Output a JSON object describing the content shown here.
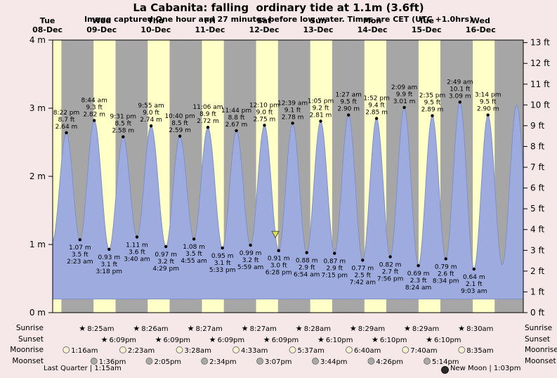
{
  "chart_data": {
    "type": "area",
    "title": "La Cabanita: falling  ordinary tide at 1.1m (3.6ft)",
    "subtitle": "Image captured One hour and 27 minutes before low water. Times are CET (UTC +1.0hrs)",
    "x_unit": "hours since 08-Dec 00:00 CET",
    "x_range": [
      14.3,
      222.9
    ],
    "y_left_unit": "m",
    "y_right_unit": "ft",
    "ylim_m": [
      0,
      4
    ],
    "fill_base_m": 0.2,
    "y_ticks_left": [
      {
        "v": 0,
        "label": "0 m"
      },
      {
        "v": 1,
        "label": "1 m"
      },
      {
        "v": 2,
        "label": "2 m"
      },
      {
        "v": 3,
        "label": "3 m"
      },
      {
        "v": 4,
        "label": "4 m"
      }
    ],
    "y_ticks_right_labels": [
      "0 ft",
      "1 ft",
      "2 ft",
      "3 ft",
      "4 ft",
      "5 ft",
      "6 ft",
      "7 ft",
      "8 ft",
      "9 ft",
      "10 ft",
      "11 ft",
      "12 ft",
      "13 ft"
    ],
    "days": [
      {
        "name": "Tue",
        "date": "08-Dec",
        "noon_t": 12
      },
      {
        "name": "Wed",
        "date": "09-Dec",
        "noon_t": 36
      },
      {
        "name": "Thu",
        "date": "10-Dec",
        "noon_t": 60
      },
      {
        "name": "Fri",
        "date": "11-Dec",
        "noon_t": 84
      },
      {
        "name": "Sat",
        "date": "12-Dec",
        "noon_t": 108
      },
      {
        "name": "Sun",
        "date": "13-Dec",
        "noon_t": 132
      },
      {
        "name": "Mon",
        "date": "14-Dec",
        "noon_t": 156
      },
      {
        "name": "Tue",
        "date": "15-Dec",
        "noon_t": 180
      },
      {
        "name": "Wed",
        "date": "16-Dec",
        "noon_t": 204
      }
    ],
    "daylight_bands": [
      [
        14.3,
        18.15
      ],
      [
        32.42,
        42.15
      ],
      [
        56.43,
        66.15
      ],
      [
        80.45,
        90.15
      ],
      [
        104.45,
        114.15
      ],
      [
        128.47,
        138.17
      ],
      [
        152.48,
        162.17
      ],
      [
        176.48,
        186.17
      ],
      [
        200.5,
        210.17
      ]
    ],
    "tide_events": [
      {
        "kind": "high",
        "t": 20.37,
        "time": "8:22 pm",
        "ft": "8.7",
        "m": "2.64"
      },
      {
        "kind": "low",
        "t": 26.38,
        "time": "2:23 am",
        "ft": "3.5",
        "m": "1.07"
      },
      {
        "kind": "high",
        "t": 32.73,
        "time": "8:44 am",
        "ft": "9.3",
        "m": "2.82"
      },
      {
        "kind": "low",
        "t": 39.3,
        "time": "3:18 pm",
        "ft": "3.1",
        "m": "0.93"
      },
      {
        "kind": "high",
        "t": 45.52,
        "time": "9:31 pm",
        "ft": "8.5",
        "m": "2.58"
      },
      {
        "kind": "low",
        "t": 51.67,
        "time": "3:40 am",
        "ft": "3.6",
        "m": "1.11"
      },
      {
        "kind": "high",
        "t": 57.92,
        "time": "9:55 am",
        "ft": "9.0",
        "m": "2.74"
      },
      {
        "kind": "low",
        "t": 64.48,
        "time": "4:29 pm",
        "ft": "3.2",
        "m": "0.97"
      },
      {
        "kind": "high",
        "t": 70.67,
        "time": "10:40 pm",
        "ft": "8.5",
        "m": "2.59"
      },
      {
        "kind": "low",
        "t": 76.92,
        "time": "4:55 am",
        "ft": "3.5",
        "m": "1.08"
      },
      {
        "kind": "high",
        "t": 83.1,
        "time": "11:06 am",
        "ft": "8.9",
        "m": "2.72"
      },
      {
        "kind": "low",
        "t": 89.55,
        "time": "5:33 pm",
        "ft": "3.1",
        "m": "0.95"
      },
      {
        "kind": "high",
        "t": 95.73,
        "time": "11:44 pm",
        "ft": "8.8",
        "m": "2.67"
      },
      {
        "kind": "low",
        "t": 101.98,
        "time": "5:59 am",
        "ft": "3.2",
        "m": "0.99"
      },
      {
        "kind": "high",
        "t": 108.17,
        "time": "12:10 pm",
        "ft": "9.0",
        "m": "2.75"
      },
      {
        "kind": "low",
        "t": 114.47,
        "time": "6:28 pm",
        "ft": "3.0",
        "m": "0.91"
      },
      {
        "kind": "high",
        "t": 120.65,
        "time": "12:39 am",
        "ft": "9.1",
        "m": "2.78"
      },
      {
        "kind": "low",
        "t": 126.9,
        "time": "6:54 am",
        "ft": "2.9",
        "m": "0.88"
      },
      {
        "kind": "high",
        "t": 133.08,
        "time": "1:05 pm",
        "ft": "9.2",
        "m": "2.81"
      },
      {
        "kind": "low",
        "t": 139.25,
        "time": "7:15 pm",
        "ft": "2.9",
        "m": "0.87"
      },
      {
        "kind": "high",
        "t": 145.45,
        "time": "1:27 am",
        "ft": "9.5",
        "m": "2.90"
      },
      {
        "kind": "low",
        "t": 151.7,
        "time": "7:42 am",
        "ft": "2.5",
        "m": "0.77"
      },
      {
        "kind": "high",
        "t": 157.87,
        "time": "1:52 pm",
        "ft": "9.4",
        "m": "2.85"
      },
      {
        "kind": "low",
        "t": 163.93,
        "time": "7:56 pm",
        "ft": "2.7",
        "m": "0.82"
      },
      {
        "kind": "high",
        "t": 170.15,
        "time": "2:09 am",
        "ft": "9.9",
        "m": "3.01"
      },
      {
        "kind": "low",
        "t": 176.4,
        "time": "8:24 am",
        "ft": "2.3",
        "m": "0.69"
      },
      {
        "kind": "high",
        "t": 182.58,
        "time": "2:35 pm",
        "ft": "9.5",
        "m": "2.89"
      },
      {
        "kind": "low",
        "t": 188.57,
        "time": "8:34 pm",
        "ft": "2.6",
        "m": "0.79"
      },
      {
        "kind": "high",
        "t": 194.82,
        "time": "2:49 am",
        "ft": "10.1",
        "m": "3.09"
      },
      {
        "kind": "low",
        "t": 201.05,
        "time": "9:03 am",
        "ft": "2.1",
        "m": "0.64"
      },
      {
        "kind": "high",
        "t": 207.23,
        "time": "3:14 pm",
        "ft": "9.5",
        "m": "2.90"
      }
    ],
    "curve_pad": {
      "pre": [
        {
          "t": 14.2,
          "m": 1.05
        }
      ],
      "post": [
        {
          "t": 213.6,
          "m": 0.7
        },
        {
          "t": 220.0,
          "m": 3.05
        },
        {
          "t": 226.3,
          "m": 0.75
        }
      ]
    },
    "current_marker": {
      "t": 113.02,
      "m": 1.1
    }
  },
  "colors": {
    "background": "#f6e8e8",
    "night": "#a6a6a6",
    "daylight": "#ffffc8",
    "tide_fill": "#9dabdf",
    "tide_stroke": "#8090c8",
    "day_label": "#cc0000",
    "marker_fill": "#dde24e",
    "sunrise_star": "#c9a800",
    "sunset_star": "#e35300",
    "moonrise_fill": "#f7f3d0",
    "moonset_fill": "#a9a9a9"
  },
  "astro": {
    "rows": [
      {
        "label": "Sunrise",
        "icon": "sunrise-star",
        "entries": [
          {
            "t": 32.42,
            "time": "8:25am"
          },
          {
            "t": 56.43,
            "time": "8:26am"
          },
          {
            "t": 80.45,
            "time": "8:27am"
          },
          {
            "t": 104.45,
            "time": "8:27am"
          },
          {
            "t": 128.47,
            "time": "8:28am"
          },
          {
            "t": 152.48,
            "time": "8:29am"
          },
          {
            "t": 176.48,
            "time": "8:29am"
          },
          {
            "t": 200.5,
            "time": "8:30am"
          }
        ]
      },
      {
        "label": "Sunset",
        "icon": "sunset-star",
        "entries": [
          {
            "t": 42.15,
            "time": "6:09pm"
          },
          {
            "t": 66.15,
            "time": "6:09pm"
          },
          {
            "t": 90.15,
            "time": "6:09pm"
          },
          {
            "t": 114.15,
            "time": "6:09pm"
          },
          {
            "t": 138.17,
            "time": "6:10pm"
          },
          {
            "t": 162.17,
            "time": "6:10pm"
          },
          {
            "t": 186.17,
            "time": "6:10pm"
          }
        ]
      },
      {
        "label": "Moonrise",
        "icon": "moon-light",
        "entries": [
          {
            "t": 25.27,
            "time": "1:16am"
          },
          {
            "t": 50.38,
            "time": "2:23am"
          },
          {
            "t": 75.47,
            "time": "3:28am"
          },
          {
            "t": 100.55,
            "time": "4:33am"
          },
          {
            "t": 125.62,
            "time": "5:37am"
          },
          {
            "t": 150.67,
            "time": "6:40am"
          },
          {
            "t": 175.67,
            "time": "7:40am"
          },
          {
            "t": 200.58,
            "time": "8:35am"
          }
        ]
      },
      {
        "label": "Moonset",
        "icon": "moon-dark",
        "entries": [
          {
            "t": 37.6,
            "time": "1:36pm"
          },
          {
            "t": 62.08,
            "time": "2:05pm"
          },
          {
            "t": 86.57,
            "time": "2:34pm"
          },
          {
            "t": 111.12,
            "time": "3:07pm"
          },
          {
            "t": 135.73,
            "time": "3:44pm"
          },
          {
            "t": 160.43,
            "time": "4:26pm"
          },
          {
            "t": 185.23,
            "time": "5:14pm"
          }
        ]
      }
    ]
  },
  "footer": {
    "left": "Last Quarter | 1:15am",
    "right": "New Moon | 1:03pm"
  }
}
